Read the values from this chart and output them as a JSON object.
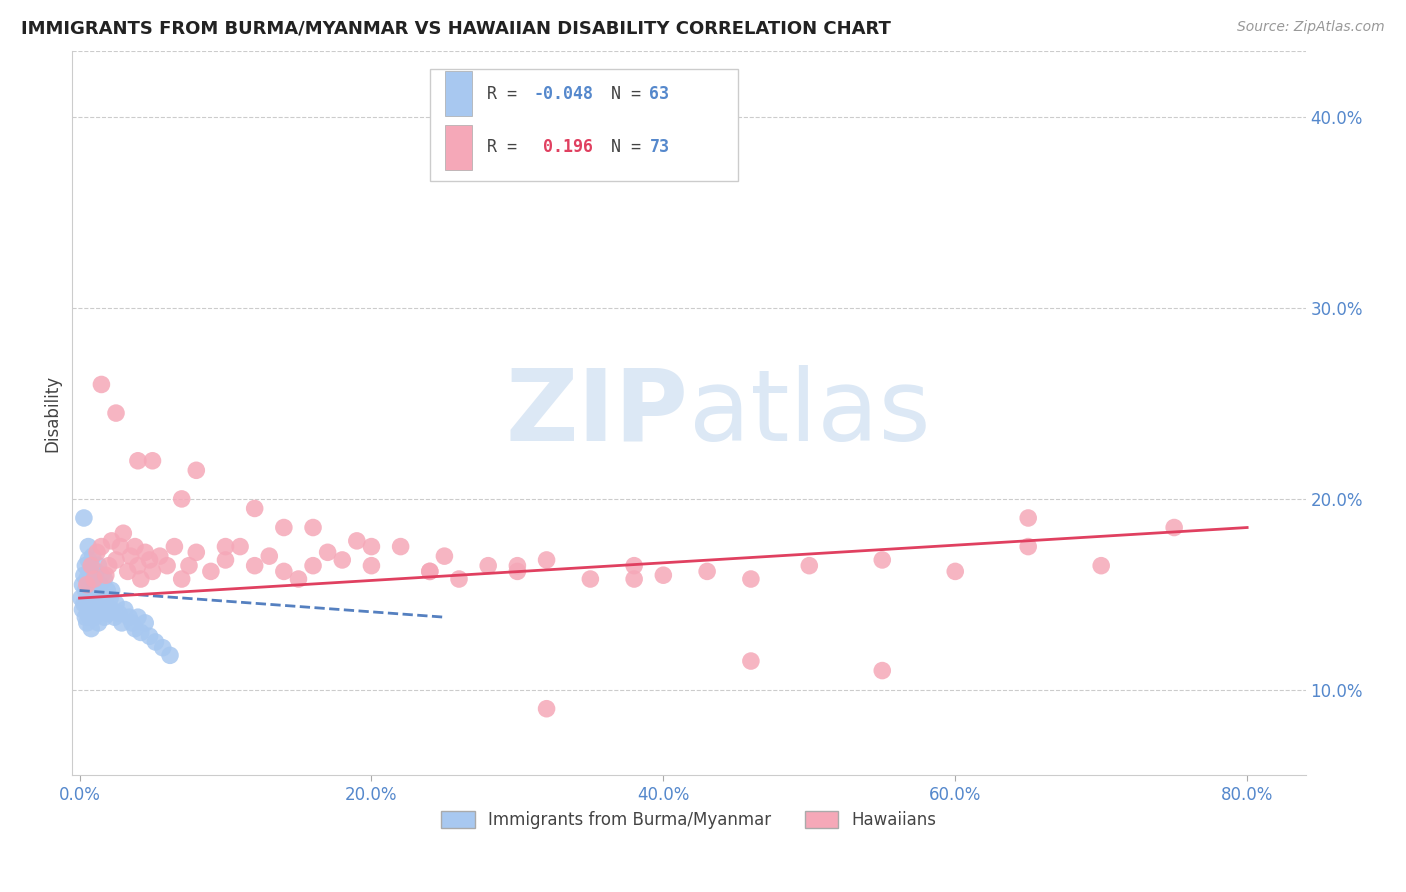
{
  "title": "IMMIGRANTS FROM BURMA/MYANMAR VS HAWAIIAN DISABILITY CORRELATION CHART",
  "source": "Source: ZipAtlas.com",
  "ylabel_left": "Disability",
  "x_tick_labels": [
    "0.0%",
    "20.0%",
    "40.0%",
    "60.0%",
    "80.0%"
  ],
  "x_tick_vals": [
    0.0,
    0.2,
    0.4,
    0.6,
    0.8
  ],
  "y_tick_labels": [
    "10.0%",
    "20.0%",
    "30.0%",
    "40.0%"
  ],
  "y_tick_vals": [
    0.1,
    0.2,
    0.3,
    0.4
  ],
  "ylim": [
    0.055,
    0.435
  ],
  "xlim": [
    -0.005,
    0.84
  ],
  "blue_R": -0.048,
  "blue_N": 63,
  "pink_R": 0.196,
  "pink_N": 73,
  "blue_color": "#a8c8f0",
  "pink_color": "#f5a8b8",
  "blue_line_color": "#5580c0",
  "pink_line_color": "#e04060",
  "watermark_color": "#dce8f5",
  "legend_label_blue": "Immigrants from Burma/Myanmar",
  "legend_label_pink": "Hawaiians",
  "blue_scatter_x": [
    0.001,
    0.002,
    0.002,
    0.003,
    0.003,
    0.004,
    0.004,
    0.004,
    0.005,
    0.005,
    0.005,
    0.006,
    0.006,
    0.006,
    0.007,
    0.007,
    0.007,
    0.007,
    0.008,
    0.008,
    0.008,
    0.009,
    0.009,
    0.01,
    0.01,
    0.01,
    0.011,
    0.011,
    0.012,
    0.012,
    0.013,
    0.013,
    0.014,
    0.015,
    0.015,
    0.016,
    0.017,
    0.018,
    0.019,
    0.02,
    0.021,
    0.022,
    0.024,
    0.025,
    0.027,
    0.029,
    0.031,
    0.034,
    0.036,
    0.038,
    0.04,
    0.042,
    0.045,
    0.048,
    0.052,
    0.057,
    0.062,
    0.003,
    0.006,
    0.009,
    0.013,
    0.017,
    0.022
  ],
  "blue_scatter_y": [
    0.148,
    0.155,
    0.142,
    0.16,
    0.145,
    0.152,
    0.138,
    0.165,
    0.145,
    0.158,
    0.135,
    0.15,
    0.14,
    0.168,
    0.155,
    0.148,
    0.138,
    0.162,
    0.152,
    0.145,
    0.132,
    0.158,
    0.142,
    0.148,
    0.138,
    0.155,
    0.145,
    0.162,
    0.14,
    0.152,
    0.148,
    0.135,
    0.155,
    0.142,
    0.16,
    0.148,
    0.138,
    0.145,
    0.152,
    0.14,
    0.148,
    0.142,
    0.138,
    0.145,
    0.14,
    0.135,
    0.142,
    0.138,
    0.135,
    0.132,
    0.138,
    0.13,
    0.135,
    0.128,
    0.125,
    0.122,
    0.118,
    0.19,
    0.175,
    0.17,
    0.165,
    0.158,
    0.152
  ],
  "pink_scatter_x": [
    0.005,
    0.008,
    0.01,
    0.012,
    0.015,
    0.018,
    0.02,
    0.022,
    0.025,
    0.028,
    0.03,
    0.033,
    0.035,
    0.038,
    0.04,
    0.042,
    0.045,
    0.048,
    0.05,
    0.055,
    0.06,
    0.065,
    0.07,
    0.075,
    0.08,
    0.09,
    0.1,
    0.11,
    0.12,
    0.13,
    0.14,
    0.15,
    0.16,
    0.17,
    0.18,
    0.2,
    0.22,
    0.24,
    0.26,
    0.28,
    0.3,
    0.32,
    0.35,
    0.38,
    0.4,
    0.43,
    0.46,
    0.5,
    0.55,
    0.6,
    0.65,
    0.7,
    0.75,
    0.025,
    0.05,
    0.08,
    0.12,
    0.16,
    0.2,
    0.25,
    0.3,
    0.38,
    0.46,
    0.55,
    0.65,
    0.015,
    0.04,
    0.07,
    0.1,
    0.14,
    0.19,
    0.24,
    0.32
  ],
  "pink_scatter_y": [
    0.155,
    0.165,
    0.158,
    0.172,
    0.175,
    0.16,
    0.165,
    0.178,
    0.168,
    0.175,
    0.182,
    0.162,
    0.17,
    0.175,
    0.165,
    0.158,
    0.172,
    0.168,
    0.162,
    0.17,
    0.165,
    0.175,
    0.158,
    0.165,
    0.172,
    0.162,
    0.168,
    0.175,
    0.165,
    0.17,
    0.162,
    0.158,
    0.165,
    0.172,
    0.168,
    0.165,
    0.175,
    0.162,
    0.158,
    0.165,
    0.162,
    0.168,
    0.158,
    0.165,
    0.16,
    0.162,
    0.158,
    0.165,
    0.168,
    0.162,
    0.175,
    0.165,
    0.185,
    0.245,
    0.22,
    0.215,
    0.195,
    0.185,
    0.175,
    0.17,
    0.165,
    0.158,
    0.115,
    0.11,
    0.19,
    0.26,
    0.22,
    0.2,
    0.175,
    0.185,
    0.178,
    0.162,
    0.09
  ],
  "blue_trend_x": [
    0.0,
    0.25
  ],
  "blue_trend_y": [
    0.152,
    0.138
  ],
  "pink_trend_x": [
    0.0,
    0.8
  ],
  "pink_trend_y": [
    0.148,
    0.185
  ]
}
